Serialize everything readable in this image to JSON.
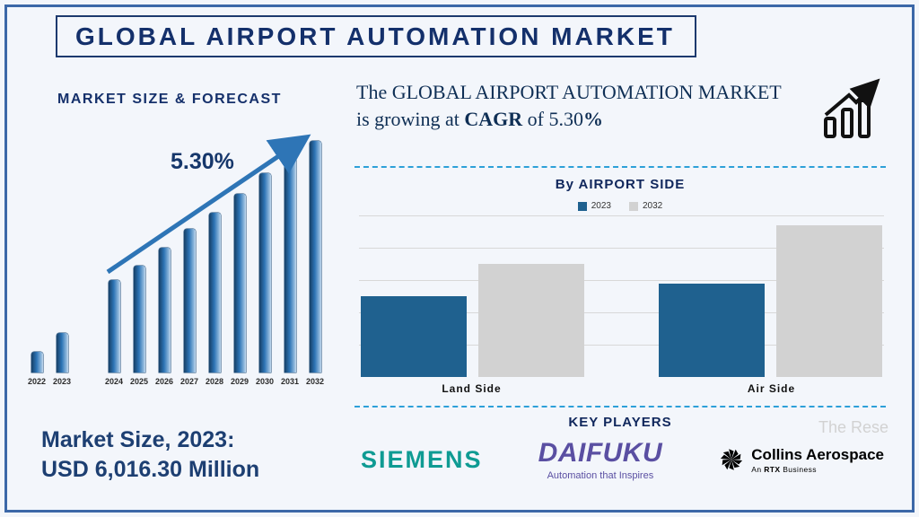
{
  "title": "GLOBAL AIRPORT AUTOMATION MARKET",
  "left_panel": {
    "section_title": "MARKET SIZE & FORECAST",
    "cagr_annotation": "5.30%",
    "market_size_line1": "Market Size, 2023:",
    "market_size_line2": "USD 6,016.30 Million"
  },
  "right_panel": {
    "growth_statement": {
      "prefix": "The GLOBAL  AIRPORT AUTOMATION MARKET is growing at ",
      "cagr_word": "CAGR",
      "middle": " of 5.30",
      "percent": "%"
    },
    "airport_side_title": "By AIRPORT SIDE",
    "key_players_title": "KEY PLAYERS",
    "key_players": [
      {
        "name": "SIEMENS",
        "color": "#0f9b93"
      },
      {
        "name": "DAIFUKU",
        "tagline": "Automation that Inspires",
        "color": "#5a4fa2"
      },
      {
        "name": "Collins Aerospace",
        "subtitle_prefix": "An ",
        "subtitle_bold": "RTX",
        "subtitle_suffix": " Business",
        "color": "#000000"
      }
    ],
    "watermark": "The Rese"
  },
  "icons": {
    "growth_chart_icon": "bar-chart-with-rising-arrow",
    "collins_star_icon": "starburst"
  },
  "colors": {
    "frame": "#3c68a8",
    "navy_text": "#14306b",
    "forecast_bar": "#2e75b6",
    "dashed_divider": "#2da0d8",
    "series_2023": "#1f618f",
    "series_2032": "#d2d2d2"
  },
  "chart_data": [
    {
      "type": "bar",
      "title": "MARKET SIZE & FORECAST",
      "categories": [
        "2022",
        "2023",
        "2024",
        "2025",
        "2026",
        "2027",
        "2028",
        "2029",
        "2030",
        "2031",
        "2032"
      ],
      "values": [
        9,
        17,
        40,
        46,
        54,
        62,
        69,
        77,
        86,
        93,
        100
      ],
      "ylim": [
        0,
        100
      ],
      "values_note": "relative bar heights, value axis unlabeled; 2023 market size = USD 6,016.30 Million; CAGR 5.30%",
      "annotation": "5.30%",
      "trend_arrow": true,
      "bar_color": "#2e75b6",
      "grid": false,
      "legend_position": "none"
    },
    {
      "type": "bar",
      "title": "By AIRPORT SIDE",
      "categories": [
        "Land Side",
        "Air Side"
      ],
      "series": [
        {
          "name": "2023",
          "color": "#1f618f",
          "values": [
            50,
            58
          ]
        },
        {
          "name": "2032",
          "color": "#d2d2d2",
          "values": [
            70,
            94
          ]
        }
      ],
      "ylim": [
        0,
        100
      ],
      "values_note": "relative bar heights, value axis unlabeled",
      "grid": true,
      "legend_position": "top"
    }
  ]
}
